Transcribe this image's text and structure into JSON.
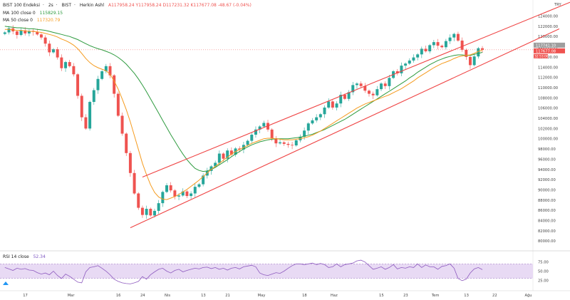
{
  "legend": {
    "symbol": "BIST 100 Endeksi",
    "interval": "2s",
    "exchange": "BIST",
    "session": "Herkin Ashl",
    "ohlc": "A117958.24  Y117958.24  D117231.32  K117677.08  -48.67 (-0.04%)",
    "ma100_label": "MA 100 close 0",
    "ma100_value": "115829.15",
    "ma50_label": "MA 50 close 0",
    "ma50_value": "117320.79",
    "rsi_label": "RSI 14 close",
    "rsi_value": "52.34"
  },
  "currency": "TRY",
  "price_tags": {
    "gray": "117741.10",
    "red": "117677.08",
    "badge": "32:53:00"
  },
  "colors": {
    "up": "#26a69a",
    "down": "#ef5350",
    "ma100": "#2e9b3f",
    "ma50": "#f59b1f",
    "channel": "#ef4444",
    "rsi": "#8e5bbf",
    "rsi_band": "#e8daf4"
  },
  "chart_data": {
    "type": "candlestick",
    "y_axis_ticks": [
      "124000.00",
      "122000.00",
      "120000.00",
      "118000.00",
      "116000.00",
      "114000.00",
      "112000.00",
      "110000.00",
      "108000.00",
      "106000.00",
      "104000.00",
      "102000.00",
      "100000.00",
      "98000.00",
      "96000.00",
      "94000.00",
      "92000.00",
      "90000.00",
      "88000.00",
      "86000.00",
      "84000.00",
      "82000.00",
      "80000.00"
    ],
    "ylim": [
      78500,
      126300
    ],
    "rsi_ticks": [
      "75.00",
      "50.00",
      "25.00"
    ],
    "rsi_ylim": [
      10,
      90
    ],
    "x_axis_ticks": [
      {
        "label": "17",
        "bar": 5
      },
      {
        "label": "Mar",
        "bar": 16
      },
      {
        "label": "16",
        "bar": 28
      },
      {
        "label": "24",
        "bar": 34
      },
      {
        "label": "Nis",
        "bar": 40
      },
      {
        "label": "13",
        "bar": 49
      },
      {
        "label": "21",
        "bar": 55
      },
      {
        "label": "May",
        "bar": 63
      },
      {
        "label": "18",
        "bar": 74
      },
      {
        "label": "Haz",
        "bar": 81
      },
      {
        "label": "15",
        "bar": 93
      },
      {
        "label": "23",
        "bar": 99
      },
      {
        "label": "Tem",
        "bar": 106
      },
      {
        "label": "13",
        "bar": 114
      },
      {
        "label": "22",
        "bar": 121
      },
      {
        "label": "Ağu",
        "bar": 129
      }
    ],
    "close": [
      120800,
      121600,
      121000,
      120300,
      121200,
      120600,
      121100,
      120900,
      120400,
      119800,
      118600,
      116900,
      117500,
      115900,
      113800,
      115000,
      114200,
      112600,
      108400,
      104200,
      102000,
      107200,
      109500,
      111700,
      113200,
      114200,
      112400,
      108800,
      104500,
      101000,
      97200,
      93300,
      89300,
      86500,
      85100,
      86300,
      85000,
      85900,
      87400,
      89600,
      90900,
      89900,
      88700,
      88900,
      89700,
      88800,
      89300,
      90600,
      91100,
      92800,
      93700,
      94600,
      95300,
      97100,
      96100,
      97700,
      96900,
      98100,
      97900,
      98800,
      99600,
      100800,
      101800,
      102400,
      103100,
      101800,
      100100,
      99100,
      99300,
      99000,
      98800,
      98700,
      99700,
      100400,
      101600,
      103000,
      103600,
      104200,
      104800,
      106100,
      107300,
      106100,
      106900,
      108600,
      107800,
      109100,
      110500,
      110800,
      110300,
      109400,
      108800,
      108500,
      109700,
      110800,
      110300,
      111900,
      113200,
      112800,
      114300,
      114700,
      115300,
      115900,
      116500,
      117600,
      117100,
      118300,
      118900,
      118200,
      117900,
      119100,
      119800,
      120500,
      119200,
      117400,
      116000,
      114400,
      116100,
      117700,
      117400
    ],
    "ma50": [
      121400,
      121400,
      121300,
      121200,
      121200,
      121100,
      121000,
      121000,
      120900,
      120800,
      120600,
      120400,
      120200,
      119900,
      119500,
      119200,
      118800,
      118300,
      117600,
      116700,
      115700,
      114900,
      114300,
      113900,
      113600,
      113300,
      112600,
      111300,
      109700,
      107800,
      105700,
      103300,
      100600,
      97900,
      95200,
      93000,
      91000,
      89500,
      88600,
      88200,
      88100,
      88400,
      88700,
      89100,
      89600,
      90100,
      90700,
      91300,
      91900,
      92600,
      93300,
      94000,
      94600,
      95200,
      95800,
      96400,
      97000,
      97500,
      97900,
      98300,
      98700,
      99100,
      99400,
      99700,
      100000,
      100100,
      100100,
      100000,
      99900,
      99800,
      99800,
      99800,
      99900,
      100000,
      100200,
      100400,
      100700,
      101100,
      101500,
      102000,
      102500,
      103000,
      103500,
      104000,
      104500,
      105000,
      105500,
      106000,
      106400,
      106800,
      107100,
      107400,
      107700,
      108000,
      108300,
      108600,
      109000,
      109400,
      109800,
      110300,
      110800,
      111300,
      111900,
      112400,
      112900,
      113400,
      113900,
      114300,
      114700,
      115000,
      115300,
      115700,
      116000,
      116200,
      116300,
      116400,
      116700,
      117100,
      117300
    ],
    "ma100": [
      122000,
      121900,
      121800,
      121700,
      121700,
      121600,
      121500,
      121500,
      121400,
      121300,
      121200,
      121000,
      120800,
      120600,
      120400,
      120200,
      120000,
      119700,
      119400,
      119000,
      118600,
      118200,
      117900,
      117600,
      117400,
      117100,
      116800,
      116400,
      115900,
      115300,
      114600,
      113700,
      112800,
      111700,
      110500,
      109200,
      107800,
      106400,
      105000,
      103600,
      102200,
      100800,
      99500,
      98200,
      97000,
      95900,
      95000,
      94200,
      93800,
      93600,
      93700,
      94000,
      94400,
      94900,
      95400,
      95900,
      96500,
      97000,
      97500,
      98000,
      98400,
      98800,
      99100,
      99400,
      99600,
      99800,
      99900,
      100000,
      100000,
      100000,
      100000,
      100100,
      100200,
      100300,
      100500,
      100700,
      100900,
      101200,
      101500,
      101800,
      102200,
      102600,
      103000,
      103400,
      103800,
      104300,
      104800,
      105300,
      105800,
      106300,
      106800,
      107300,
      107800,
      108300,
      108800,
      109300,
      109800,
      110300,
      110800,
      111300,
      111900,
      112400,
      113000,
      113500,
      114000,
      114500,
      114900,
      115300,
      115600,
      115900,
      116100,
      116300,
      116400,
      116400,
      116300,
      116300,
      116500,
      116700,
      116900
    ],
    "rsi": [
      60,
      56,
      52,
      58,
      55,
      57,
      53,
      52,
      46,
      42,
      45,
      40,
      50,
      38,
      30,
      42,
      36,
      28,
      20,
      18,
      48,
      60,
      62,
      65,
      58,
      50,
      40,
      28,
      22,
      18,
      16,
      15,
      18,
      22,
      35,
      28,
      40,
      48,
      55,
      58,
      50,
      45,
      52,
      55,
      48,
      52,
      55,
      58,
      56,
      60,
      61,
      57,
      60,
      55,
      58,
      53,
      58,
      60,
      56,
      62,
      64,
      66,
      62,
      45,
      40,
      38,
      42,
      46,
      44,
      50,
      58,
      65,
      70,
      70,
      68,
      70,
      72,
      68,
      71,
      68,
      60,
      62,
      70,
      62,
      68,
      70,
      72,
      78,
      80,
      75,
      65,
      55,
      58,
      62,
      55,
      60,
      68,
      56,
      60,
      58,
      62,
      60,
      70,
      60,
      67,
      62,
      62,
      55,
      63,
      65,
      70,
      58,
      30,
      24,
      28,
      45,
      56,
      60,
      54
    ],
    "channel": {
      "upper": [
        [
          34,
          92500
        ],
        [
          140,
          126800
        ]
      ],
      "lower": [
        [
          31,
          82600
        ],
        [
          137,
          121500
        ]
      ],
      "lower2": [
        [
          31,
          82600
        ],
        [
          137,
          121500
        ]
      ]
    }
  }
}
